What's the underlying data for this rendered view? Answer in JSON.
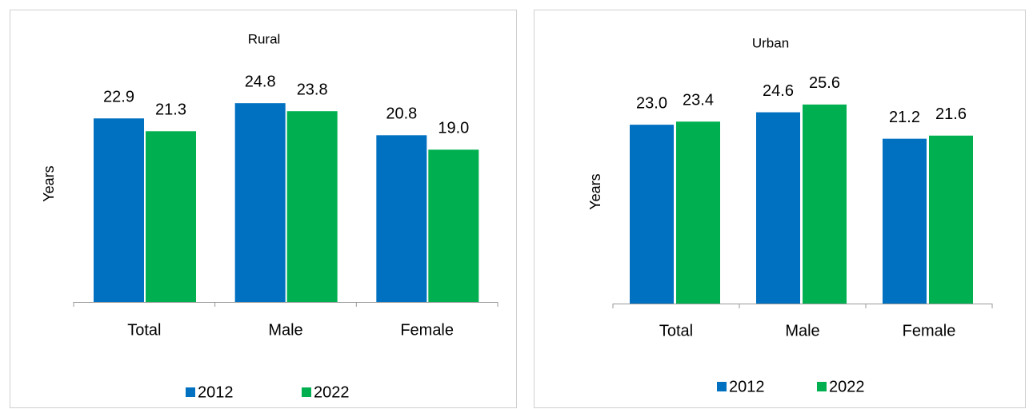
{
  "chart_data": [
    {
      "type": "bar",
      "title": "Rural",
      "y_label": "Years",
      "categories": [
        "Total",
        "Male",
        "Female"
      ],
      "series": [
        {
          "name": "2012",
          "color": "#0070c0",
          "values": [
            22.9,
            24.8,
            20.8
          ],
          "value_labels": [
            "22.9",
            "24.8",
            "20.8"
          ]
        },
        {
          "name": "2022",
          "color": "#00b050",
          "values": [
            21.3,
            23.8,
            19.0
          ],
          "value_labels": [
            "21.3",
            "23.8",
            "19.0"
          ]
        }
      ],
      "ylim": [
        0,
        30
      ],
      "legend": "bottom"
    },
    {
      "type": "bar",
      "title": "Urban",
      "y_label": "Years",
      "categories": [
        "Total",
        "Male",
        "Female"
      ],
      "series": [
        {
          "name": "2012",
          "color": "#0070c0",
          "values": [
            23.0,
            24.6,
            21.2
          ],
          "value_labels": [
            "23.0",
            "24.6",
            "21.2"
          ]
        },
        {
          "name": "2022",
          "color": "#00b050",
          "values": [
            23.4,
            25.6,
            21.6
          ],
          "value_labels": [
            "23.4",
            "25.6",
            "21.6"
          ]
        }
      ],
      "ylim": [
        0,
        30
      ],
      "legend": "bottom"
    }
  ]
}
